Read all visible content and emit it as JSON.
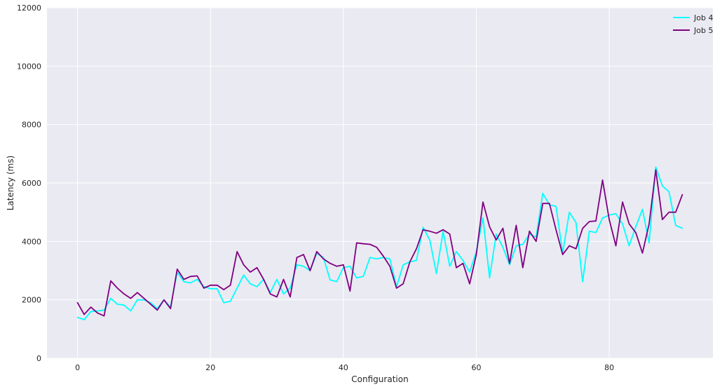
{
  "chart_data": {
    "type": "line",
    "title": "",
    "xlabel": "Configuration",
    "ylabel": "Latency (ms)",
    "xlim": [
      -4.6,
      95.6
    ],
    "ylim": [
      0,
      12000
    ],
    "xticks": [
      0,
      20,
      40,
      60,
      80
    ],
    "yticks": [
      0,
      2000,
      4000,
      6000,
      8000,
      10000,
      12000
    ],
    "grid": true,
    "legend_position": "top-right",
    "background_color": "#eaeaf2",
    "grid_color": "#ffffff",
    "x": [
      0,
      1,
      2,
      3,
      4,
      5,
      6,
      7,
      8,
      9,
      10,
      11,
      12,
      13,
      14,
      15,
      16,
      17,
      18,
      19,
      20,
      21,
      22,
      23,
      24,
      25,
      26,
      27,
      28,
      29,
      30,
      31,
      32,
      33,
      34,
      35,
      36,
      37,
      38,
      39,
      40,
      41,
      42,
      43,
      44,
      45,
      46,
      47,
      48,
      49,
      50,
      51,
      52,
      53,
      54,
      55,
      56,
      57,
      58,
      59,
      60,
      61,
      62,
      63,
      64,
      65,
      66,
      67,
      68,
      69,
      70,
      71,
      72,
      73,
      74,
      75,
      76,
      77,
      78,
      79,
      80,
      81,
      82,
      83,
      84,
      85,
      86,
      87,
      88,
      89,
      90,
      91
    ],
    "series": [
      {
        "name": "Job 4",
        "color": "#00ffff",
        "values": [
          1400,
          1320,
          1600,
          1620,
          1650,
          2050,
          1850,
          1820,
          1620,
          2000,
          2000,
          1900,
          1700,
          2000,
          1750,
          2950,
          2620,
          2580,
          2700,
          2450,
          2380,
          2380,
          1900,
          1950,
          2400,
          2850,
          2550,
          2450,
          2700,
          2250,
          2700,
          2200,
          2400,
          3200,
          3150,
          3000,
          3600,
          3450,
          2680,
          2620,
          3100,
          3150,
          2750,
          2800,
          3450,
          3400,
          3450,
          3400,
          2450,
          3200,
          3300,
          3350,
          4480,
          4050,
          2900,
          4350,
          3150,
          3650,
          3350,
          2950,
          3650,
          4800,
          2750,
          4250,
          3800,
          3200,
          3850,
          3900,
          4250,
          4150,
          5650,
          5250,
          5200,
          3600,
          5000,
          4650,
          2620,
          4350,
          4300,
          4800,
          4900,
          4950,
          4600,
          3850,
          4500,
          5100,
          3950,
          6550,
          5900,
          5700,
          4550,
          4450
        ]
      },
      {
        "name": "Job 5",
        "color": "#800080",
        "values": [
          1900,
          1500,
          1750,
          1550,
          1450,
          2650,
          2400,
          2200,
          2050,
          2250,
          2050,
          1850,
          1650,
          2000,
          1700,
          3050,
          2700,
          2800,
          2820,
          2400,
          2500,
          2500,
          2350,
          2500,
          3650,
          3200,
          2950,
          3100,
          2700,
          2200,
          2100,
          2700,
          2100,
          3450,
          3550,
          3000,
          3650,
          3400,
          3250,
          3150,
          3200,
          2300,
          3950,
          3920,
          3900,
          3800,
          3500,
          3150,
          2400,
          2550,
          3300,
          3750,
          4400,
          4350,
          4280,
          4400,
          4250,
          3100,
          3250,
          2550,
          3550,
          5350,
          4500,
          4050,
          4450,
          3250,
          4550,
          3100,
          4350,
          4000,
          5300,
          5300,
          4400,
          3550,
          3850,
          3750,
          4450,
          4680,
          4700,
          6100,
          4750,
          3850,
          5350,
          4600,
          4300,
          3600,
          4600,
          6450,
          4750,
          5000,
          5000,
          5600
        ]
      }
    ]
  }
}
